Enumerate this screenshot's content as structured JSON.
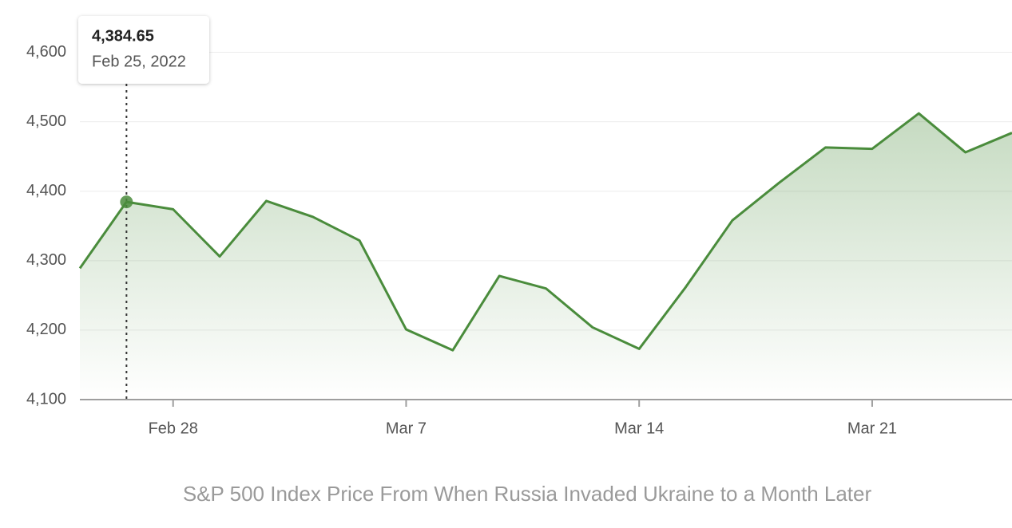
{
  "chart_data": {
    "type": "line",
    "title": "S&P 500 Index Price From When Russia Invaded Ukraine to a Month Later",
    "categories": [
      null,
      null,
      "Feb 28",
      null,
      null,
      null,
      null,
      "Mar 7",
      null,
      null,
      null,
      null,
      "Mar 14",
      null,
      null,
      null,
      null,
      "Mar 21",
      null,
      null,
      null
    ],
    "values": [
      4289,
      4384.65,
      4374,
      4306,
      4386,
      4363,
      4329,
      4201,
      4171,
      4278,
      4260,
      4204,
      4173,
      4262,
      4358,
      4412,
      4463,
      4461,
      4512,
      4456,
      4484
    ],
    "value_labels": [
      null,
      "4,384.65",
      null,
      null,
      null,
      null,
      null,
      null,
      null,
      null,
      null,
      null,
      null,
      null,
      null,
      null,
      null,
      null,
      null,
      null,
      null
    ],
    "tooltip_date": "Feb 25, 2022",
    "color": "#4a8c3c",
    "ylim": [
      4100,
      4650
    ],
    "yticks": [
      {
        "value": 4100,
        "label": "4,100"
      },
      {
        "value": 4200,
        "label": "4,200"
      },
      {
        "value": 4300,
        "label": "4,300"
      },
      {
        "value": 4400,
        "label": "4,400"
      },
      {
        "value": 4500,
        "label": "4,500"
      },
      {
        "value": 4600,
        "label": "4,600"
      }
    ],
    "grid": true
  }
}
